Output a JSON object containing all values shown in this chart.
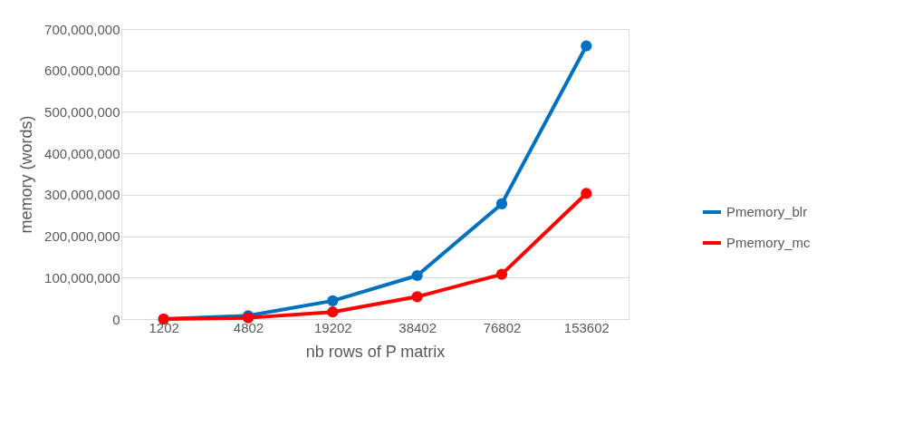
{
  "chart_data": {
    "type": "line",
    "xlabel": "nb rows of P matrix",
    "ylabel": "memory (words)",
    "categories": [
      "1202",
      "4802",
      "19202",
      "38402",
      "76802",
      "153602"
    ],
    "series": [
      {
        "name": "Pmemory_blr",
        "color": "#0070c0",
        "values": [
          0,
          8000000,
          44000000,
          105000000,
          278000000,
          659000000
        ]
      },
      {
        "name": "Pmemory_mc",
        "color": "#ff0000",
        "values": [
          0,
          3000000,
          17000000,
          54000000,
          108000000,
          303000000
        ]
      }
    ],
    "ylim": [
      0,
      700000000
    ],
    "yticks": [
      0,
      {
        "value": 100000000,
        "label": "100,000,000"
      },
      {
        "value": 200000000,
        "label": "200,000,000"
      },
      {
        "value": 300000000,
        "label": "300,000,000"
      },
      {
        "value": 400000000,
        "label": "400,000,000"
      },
      {
        "value": 500000000,
        "label": "500,000,000"
      },
      {
        "value": 600000000,
        "label": "600,000,000"
      },
      {
        "value": 700000000,
        "label": "700,000,000"
      }
    ],
    "grid": "y",
    "legend": "right",
    "marker": "circle",
    "line_style": "solid"
  }
}
